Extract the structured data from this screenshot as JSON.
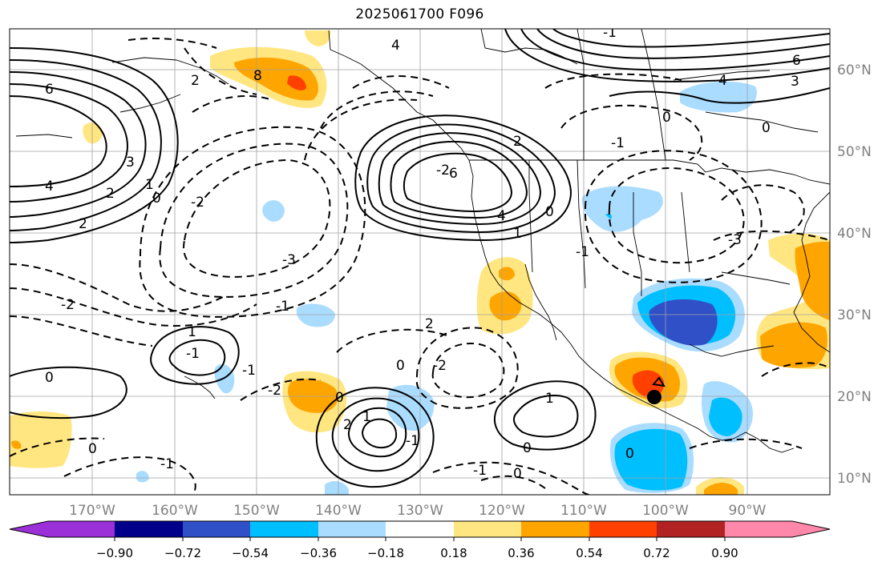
{
  "title": "2025061700 F096",
  "map": {
    "latitude_labels": [
      "60°N",
      "50°N",
      "40°N",
      "30°N",
      "20°N",
      "10°N"
    ],
    "longitude_labels": [
      "170°W",
      "160°W",
      "150°W",
      "140°W",
      "130°W",
      "120°W",
      "110°W",
      "100°W",
      "90°W"
    ],
    "contour_labels": [
      "6",
      "4",
      "3",
      "2",
      "1",
      "0",
      "2",
      "8",
      "4",
      "2",
      "6",
      "4",
      "2",
      "1",
      "0",
      "6",
      "4",
      "3",
      "-1",
      "-2",
      "-3",
      "-1",
      "-2",
      "-1",
      "0",
      "1",
      "0",
      "-2",
      "2",
      "-2",
      "-1",
      "0",
      "2",
      "1",
      "0",
      "-1",
      "-1",
      "0",
      "-2",
      "-1",
      "1",
      "0",
      "-1",
      "0",
      "-3",
      "0",
      "-1",
      "0"
    ],
    "marker": "black-dot"
  },
  "colorbar": {
    "ticks": [
      "−0.90",
      "−0.72",
      "−0.54",
      "−0.36",
      "−0.18",
      "0.18",
      "0.36",
      "0.54",
      "0.72",
      "0.90"
    ],
    "colors": [
      "#9b30d9",
      "#00008b",
      "#3050c8",
      "#00bfff",
      "#aadcff",
      "#ffffff",
      "#ffe680",
      "#ffa500",
      "#ff4000",
      "#b22222",
      "#ff88aa"
    ]
  }
}
